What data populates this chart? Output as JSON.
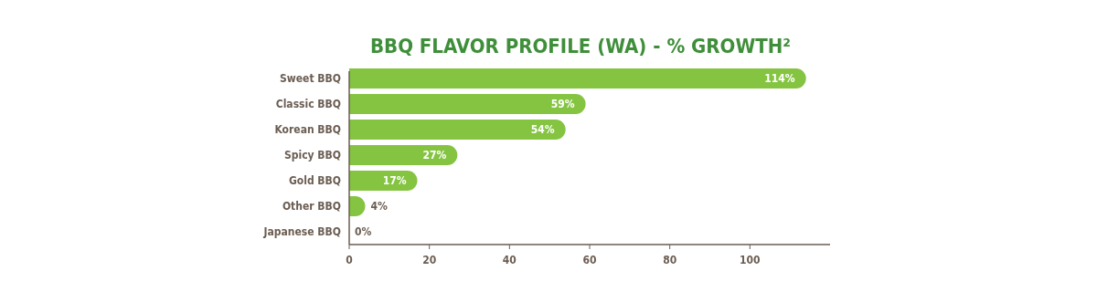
{
  "chart_data": {
    "type": "bar",
    "orientation": "horizontal",
    "title": "BBQ FLAVOR PROFILE (WA) - % GROWTH²",
    "categories": [
      "Sweet BBQ",
      "Classic BBQ",
      "Korean BBQ",
      "Spicy BBQ",
      "Gold BBQ",
      "Other BBQ",
      "Japanese BBQ"
    ],
    "values": [
      114,
      59,
      54,
      27,
      17,
      4,
      0
    ],
    "value_labels": [
      "114%",
      "59%",
      "54%",
      "27%",
      "17%",
      "4%",
      "0%"
    ],
    "color": "#84c441",
    "xlim": [
      0,
      120
    ],
    "xticks": [
      0,
      20,
      40,
      60,
      80,
      100
    ],
    "grid": false
  }
}
